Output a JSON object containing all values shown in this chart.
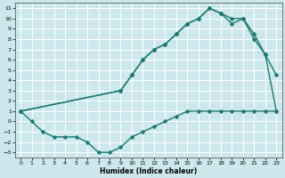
{
  "xlabel": "Humidex (Indice chaleur)",
  "xlim": [
    -0.5,
    23.5
  ],
  "ylim": [
    -3.5,
    11.5
  ],
  "xticks": [
    0,
    1,
    2,
    3,
    4,
    5,
    6,
    7,
    8,
    9,
    10,
    11,
    12,
    13,
    14,
    15,
    16,
    17,
    18,
    19,
    20,
    21,
    22,
    23
  ],
  "yticks": [
    -3,
    -2,
    -1,
    0,
    1,
    2,
    3,
    4,
    5,
    6,
    7,
    8,
    9,
    10,
    11
  ],
  "bg_color": "#cce8ed",
  "grid_color": "#ffffff",
  "line_color": "#1a7a6e",
  "curve1_x": [
    0,
    1,
    2,
    3,
    4,
    5,
    6,
    7,
    8,
    9,
    10,
    11,
    12,
    13,
    14,
    15,
    16,
    17,
    18,
    19,
    20,
    21,
    22,
    23
  ],
  "curve1_y": [
    1,
    0,
    -1,
    -1.5,
    -1.5,
    -1.5,
    -2,
    -3,
    -3,
    -2.5,
    -1.5,
    -1,
    -0.5,
    0,
    0.5,
    1,
    1,
    1,
    1,
    1,
    1,
    1,
    1,
    1
  ],
  "curve2_x": [
    0,
    9,
    10,
    11,
    12,
    13,
    14,
    15,
    16,
    17,
    18,
    19,
    20,
    21,
    22,
    23
  ],
  "curve2_y": [
    1,
    3,
    4.5,
    6,
    7,
    7.5,
    8.5,
    9.5,
    10,
    11,
    10.5,
    9.5,
    10,
    8,
    6.5,
    1
  ],
  "curve3_x": [
    0,
    9,
    10,
    11,
    12,
    13,
    14,
    15,
    16,
    17,
    18,
    19,
    20,
    21,
    22,
    23
  ],
  "curve3_y": [
    1,
    3,
    4.5,
    6,
    7,
    7.5,
    8.5,
    9.5,
    10,
    11,
    10.5,
    10,
    10,
    8.5,
    6.5,
    4.5
  ],
  "marker": "D",
  "markersize": 2.5,
  "linewidth": 1.0
}
